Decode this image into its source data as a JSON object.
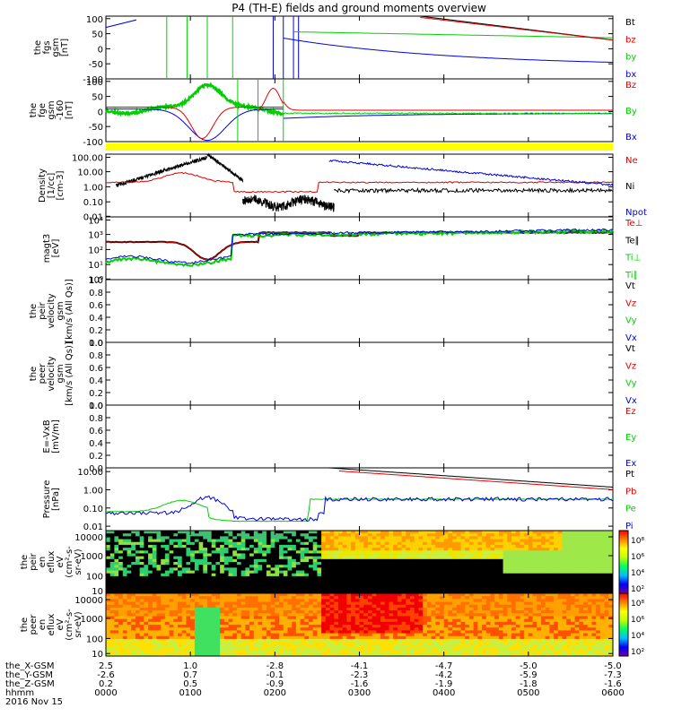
{
  "title": "P4 (TH-E) fields and ground moments overview",
  "colors": {
    "black": "#000000",
    "red": "#e00000",
    "green": "#00d000",
    "blue": "#0000e0",
    "yellow": "#ffff00"
  },
  "time_axis": {
    "rows": [
      {
        "label": "the_X-GSM",
        "values": [
          "2.5",
          "1.0",
          "-2.8",
          "-4.1",
          "-4.7",
          "-5.0",
          "-5.0"
        ]
      },
      {
        "label": "the_Y-GSM",
        "values": [
          "-2.6",
          "0.7",
          "-0.1",
          "-2.3",
          "-4.2",
          "-5.9",
          "-7.3"
        ]
      },
      {
        "label": "the_Z-GSM",
        "values": [
          "0.2",
          "0.5",
          "-0.9",
          "-1.6",
          "-1.9",
          "-1.8",
          "-1.6"
        ]
      },
      {
        "label": "hhmm",
        "values": [
          "0000",
          "0100",
          "0200",
          "0300",
          "0400",
          "0500",
          "0600"
        ]
      }
    ],
    "date": "2016 Nov 15"
  },
  "panels": [
    {
      "ylabel": [
        "the",
        "fgs",
        "gsm",
        "[nT]"
      ],
      "ticks": [
        "100",
        "50",
        "0",
        "-50",
        "-100"
      ],
      "legend": [
        {
          "t": "Bt",
          "c": "black"
        },
        {
          "t": "bz",
          "c": "red"
        },
        {
          "t": "by",
          "c": "green"
        },
        {
          "t": "bx",
          "c": "blue"
        }
      ]
    },
    {
      "ylabel": [
        "the",
        "fge",
        "gsm",
        "-160",
        "[nT]"
      ],
      "ticks": [
        "100",
        "50",
        "0",
        "-50",
        "-100"
      ],
      "legend": [
        {
          "t": "Bz",
          "c": "red"
        },
        {
          "t": "By",
          "c": "green"
        },
        {
          "t": "Bx",
          "c": "blue"
        }
      ]
    },
    {
      "ylabel": [
        "Density",
        "[1/cc]",
        "[cm-3]"
      ],
      "ticks": [
        "100.00",
        "10.00",
        "1.00",
        "0.10",
        "0.01"
      ],
      "legend": [
        {
          "t": "Ne",
          "c": "red"
        },
        {
          "t": "Ni",
          "c": "black"
        },
        {
          "t": "Npot",
          "c": "blue"
        }
      ]
    },
    {
      "ylabel": [
        "magt3",
        "[eV]"
      ],
      "ticks": [
        "10⁴",
        "10³",
        "10²",
        "10¹",
        "10⁰"
      ],
      "legend": [
        {
          "t": "Te⊥",
          "c": "red"
        },
        {
          "t": "Te∥",
          "c": "black"
        },
        {
          "t": "Ti⊥",
          "c": "green"
        },
        {
          "t": "Ti∥",
          "c": "green"
        }
      ]
    },
    {
      "ylabel": [
        "the",
        "peir",
        "velocity",
        "gsm",
        "[km/s (All Qs)]"
      ],
      "ticks": [
        "1.0",
        "0.8",
        "0.6",
        "0.4",
        "0.2",
        "0.0"
      ],
      "legend": [
        {
          "t": "Vt",
          "c": "black"
        },
        {
          "t": "Vz",
          "c": "red"
        },
        {
          "t": "Vy",
          "c": "green"
        },
        {
          "t": "Vx",
          "c": "blue"
        }
      ]
    },
    {
      "ylabel": [
        "the",
        "peer",
        "velocity",
        "gsm",
        "[km/s (All Qs)]"
      ],
      "ticks": [
        "1.0",
        "0.8",
        "0.6",
        "0.4",
        "0.2",
        "0.0"
      ],
      "legend": [
        {
          "t": "Vt",
          "c": "black"
        },
        {
          "t": "Vz",
          "c": "red"
        },
        {
          "t": "Vy",
          "c": "green"
        },
        {
          "t": "Vx",
          "c": "blue"
        }
      ]
    },
    {
      "ylabel": [
        "E=-VxB",
        "[mV/m]"
      ],
      "ticks": [
        "1.0",
        "0.8",
        "0.6",
        "0.4",
        "0.2",
        "0.0"
      ],
      "legend": [
        {
          "t": "Ez",
          "c": "red"
        },
        {
          "t": "Ey",
          "c": "green"
        },
        {
          "t": "Ex",
          "c": "blue"
        }
      ]
    },
    {
      "ylabel": [
        "Pressure",
        "[nPa]"
      ],
      "ticks": [
        "10.00",
        "1.00",
        "0.10",
        "0.01"
      ],
      "legend": [
        {
          "t": "Pt",
          "c": "black"
        },
        {
          "t": "Pb",
          "c": "red"
        },
        {
          "t": "Pe",
          "c": "green"
        },
        {
          "t": "Pi",
          "c": "blue"
        }
      ]
    },
    {
      "ylabel": [
        "the",
        "peir",
        "en",
        "eflux",
        "eV",
        "(cm²-s-",
        "sr-eV)"
      ],
      "ticks": [
        "10000",
        "1000",
        "100",
        "10"
      ],
      "legend": []
    },
    {
      "ylabel": [
        "the",
        "peer",
        "en",
        "eflux",
        "eV",
        "(cm²-s-",
        "sr-eV)"
      ],
      "ticks": [
        "10000",
        "1000",
        "100",
        "10"
      ],
      "legend": []
    }
  ],
  "colorbars": [
    {
      "ticks": [
        "10⁸",
        "10⁶",
        "10⁴",
        "10²"
      ]
    },
    {
      "ticks": [
        "10⁸",
        "10⁶",
        "10⁴",
        "10²"
      ]
    }
  ],
  "colorbar_label": "[eV/(cm²-s-sr-eV)] (All Qs)]",
  "chart_data": [
    {
      "type": "line",
      "title": "the fgs gsm [nT]",
      "ylim": [
        -100,
        100
      ],
      "x": [
        "0000",
        "0100",
        "0200",
        "0300",
        "0400",
        "0500",
        "0600"
      ],
      "series": [
        {
          "name": "Bt",
          "values": [
            null,
            null,
            null,
            115,
            70,
            45,
            33
          ]
        },
        {
          "name": "bz",
          "values": [
            null,
            null,
            null,
            110,
            68,
            42,
            30
          ]
        },
        {
          "name": "by",
          "values": [
            null,
            null,
            40,
            30,
            20,
            17,
            15
          ]
        },
        {
          "name": "bx",
          "values": [
            100,
            null,
            null,
            -70,
            -45,
            -35,
            -25
          ]
        }
      ]
    },
    {
      "type": "line",
      "title": "the fge gsm -160 [nT]",
      "ylim": [
        -100,
        100
      ],
      "x": [
        "0000",
        "0100",
        "0200",
        "0300",
        "0400",
        "0500",
        "0600"
      ],
      "series": [
        {
          "name": "Bz",
          "values": [
            0,
            -80,
            -20,
            0,
            2,
            5,
            0
          ]
        },
        {
          "name": "By",
          "values": [
            10,
            -100,
            null,
            -5,
            5,
            5,
            0
          ]
        },
        {
          "name": "Bx",
          "values": [
            -20,
            -100,
            -30,
            0,
            -5,
            0,
            0
          ]
        }
      ]
    },
    {
      "type": "line",
      "title": "Density",
      "ylim": [
        0.01,
        100
      ],
      "x": [
        "0000",
        "0100",
        "0200",
        "0300",
        "0400",
        "0500",
        "0600"
      ],
      "series": [
        {
          "name": "Ne",
          "values": [
            0.5,
            3,
            0.15,
            1,
            0.8,
            0.5,
            0.4
          ]
        },
        {
          "name": "Ni",
          "values": [
            1,
            100,
            0.07,
            0.4,
            0.4,
            0.3,
            0.3
          ]
        },
        {
          "name": "Npot",
          "values": [
            null,
            null,
            null,
            50,
            5,
            2,
            1
          ]
        }
      ]
    },
    {
      "type": "line",
      "title": "magt3 [eV]",
      "ylim": [
        1,
        10000
      ],
      "x": [
        "0000",
        "0100",
        "0200",
        "0300",
        "0400",
        "0500",
        "0600"
      ],
      "series": [
        {
          "name": "Te⊥",
          "values": [
            600,
            30,
            600,
            200,
            700,
            1500,
            2000
          ]
        },
        {
          "name": "Te∥",
          "values": [
            600,
            30,
            600,
            200,
            700,
            1500,
            2000
          ]
        },
        {
          "name": "Ti⊥",
          "values": [
            100,
            6,
            1000,
            2000,
            2500,
            2500,
            2500
          ]
        },
        {
          "name": "Ti∥",
          "values": [
            80,
            5,
            900,
            2500,
            3000,
            3000,
            3000
          ]
        }
      ]
    },
    {
      "type": "line",
      "title": "Pressure",
      "ylim": [
        0.005,
        30
      ],
      "x": [
        "0000",
        "0100",
        "0200",
        "0300",
        "0400",
        "0500",
        "0600"
      ],
      "series": [
        {
          "name": "Pt",
          "values": [
            null,
            null,
            null,
            15,
            3,
            0.8,
            0.5
          ]
        },
        {
          "name": "Pb",
          "values": [
            null,
            null,
            null,
            15,
            3,
            0.7,
            0.4
          ]
        },
        {
          "name": "Pe",
          "values": [
            0.02,
            0.1,
            0.01,
            0.15,
            0.12,
            0.1,
            0.08
          ]
        },
        {
          "name": "Pi",
          "values": [
            0.03,
            0.2,
            0.02,
            0.3,
            0.25,
            0.15,
            0.1
          ]
        }
      ]
    }
  ]
}
